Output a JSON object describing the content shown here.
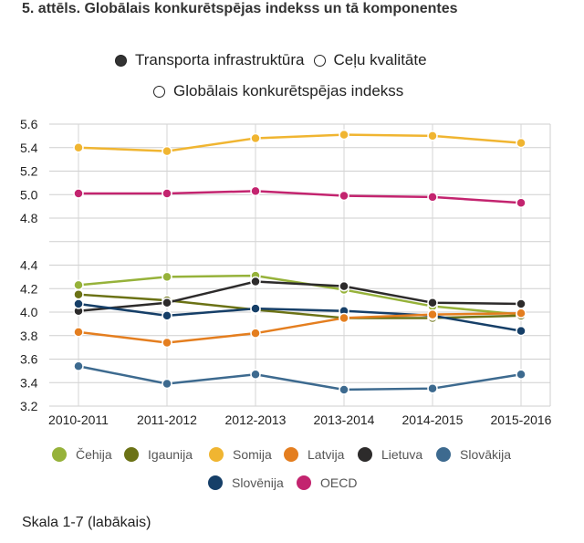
{
  "title": "5. attēls. Globālais konkurētspējas indekss un tā komponentes",
  "type_legend": [
    {
      "label": "Transporta infrastruktūra",
      "marker": "filled"
    },
    {
      "label": "Ceļu kvalitāte",
      "marker": "open"
    },
    {
      "label": "Globālais konkurētspējas indekss",
      "marker": "open"
    }
  ],
  "scale_note": "Skala 1-7 (labākais)",
  "chart_data": {
    "type": "line",
    "categories": [
      "2010-2011",
      "2011-2012",
      "2012-2013",
      "2013-2014",
      "2014-2015",
      "2015-2016"
    ],
    "ylim": [
      3.2,
      5.6
    ],
    "y_ticks": [
      "3.2",
      "3.4",
      "3.6",
      "3.8",
      "4.0",
      "4.2",
      "4.4",
      "4.8",
      "5.0",
      "5.2",
      "5.4",
      "5.6"
    ],
    "y_tick_values": [
      3.2,
      3.4,
      3.6,
      3.8,
      4.0,
      4.2,
      4.4,
      4.8,
      5.0,
      5.2,
      5.4,
      5.6
    ],
    "grid": true,
    "series": [
      {
        "name": "Somija",
        "color": "#f0b531",
        "values": [
          5.4,
          5.37,
          5.48,
          5.51,
          5.5,
          5.44
        ]
      },
      {
        "name": "OECD",
        "color": "#c3246f",
        "values": [
          5.01,
          5.01,
          5.03,
          4.99,
          4.98,
          4.93
        ]
      },
      {
        "name": "Čehija",
        "color": "#96b23a",
        "values": [
          4.23,
          4.3,
          4.31,
          4.19,
          4.05,
          3.98
        ]
      },
      {
        "name": "Igaunija",
        "color": "#6b7215",
        "values": [
          4.15,
          4.1,
          4.02,
          3.95,
          3.95,
          3.97
        ]
      },
      {
        "name": "Lietuva",
        "color": "#2d2b2b",
        "values": [
          4.01,
          4.08,
          4.26,
          4.22,
          4.08,
          4.07
        ]
      },
      {
        "name": "Slovēnija",
        "color": "#163f68",
        "values": [
          4.07,
          3.97,
          4.03,
          4.01,
          3.97,
          3.84
        ]
      },
      {
        "name": "Latvija",
        "color": "#e47e1f",
        "values": [
          3.83,
          3.74,
          3.82,
          3.95,
          3.98,
          3.99
        ]
      },
      {
        "name": "Slovākija",
        "color": "#3d6a8f",
        "values": [
          3.54,
          3.39,
          3.47,
          3.34,
          3.35,
          3.47
        ]
      }
    ]
  },
  "country_legend": [
    {
      "name": "Čehija",
      "color": "#96b23a"
    },
    {
      "name": "Igaunija",
      "color": "#6b7215"
    },
    {
      "name": "Somija",
      "color": "#f0b531"
    },
    {
      "name": "Latvija",
      "color": "#e47e1f"
    },
    {
      "name": "Lietuva",
      "color": "#2d2b2b"
    },
    {
      "name": "Slovākija",
      "color": "#3d6a8f"
    },
    {
      "name": "Slovēnija",
      "color": "#163f68"
    },
    {
      "name": "OECD",
      "color": "#c3246f"
    }
  ]
}
